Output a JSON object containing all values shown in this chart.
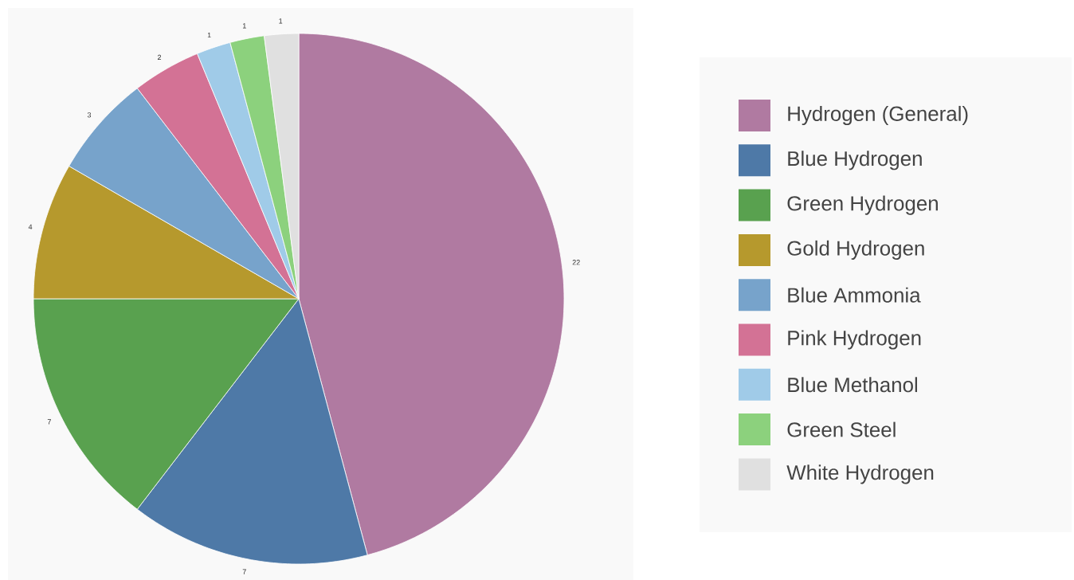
{
  "chart_data": {
    "type": "pie",
    "categories": [
      "Hydrogen (General)",
      "Blue Hydrogen",
      "Green Hydrogen",
      "Gold Hydrogen",
      "Blue Ammonia",
      "Pink Hydrogen",
      "Blue Methanol",
      "Green Steel",
      "White Hydrogen"
    ],
    "values": [
      22,
      7,
      7,
      4,
      3,
      2,
      1,
      1,
      1
    ],
    "colors": [
      "#b07aa1",
      "#4e79a7",
      "#59a14f",
      "#b6992d",
      "#77a3cb",
      "#d37295",
      "#a0cbe8",
      "#8cd17d",
      "#e0e0e0"
    ],
    "legend": "right",
    "data_labels": true
  }
}
